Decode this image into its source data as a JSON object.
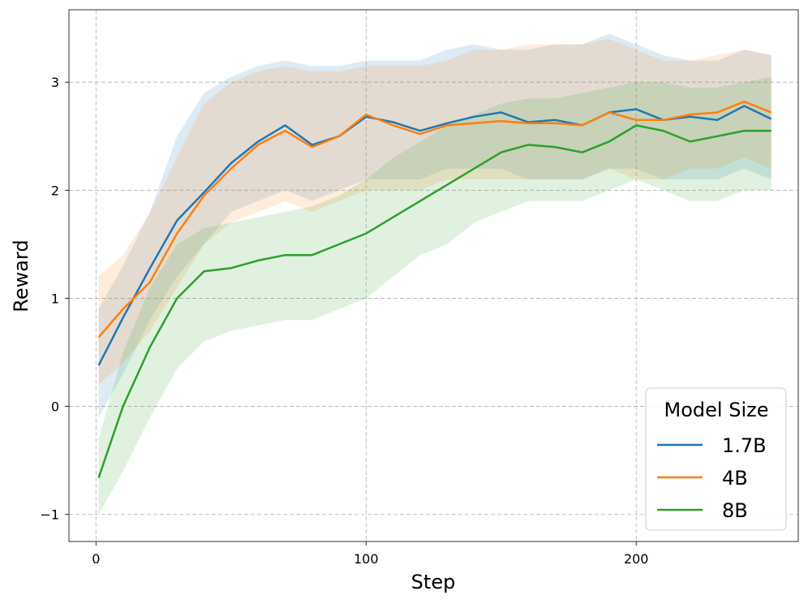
{
  "chart_data": {
    "type": "line",
    "xlabel": "Step",
    "ylabel": "Reward",
    "xlim": [
      -10,
      260
    ],
    "ylim": [
      -1.25,
      3.67
    ],
    "xticks": [
      0,
      100,
      200
    ],
    "yticks": [
      -1,
      0,
      1,
      2,
      3
    ],
    "grid": true,
    "legend": {
      "title": "Model Size",
      "position": "bottom-right"
    },
    "series": [
      {
        "name": "1.7B",
        "color": "#1f77b4",
        "x": [
          1,
          10,
          20,
          30,
          40,
          50,
          60,
          70,
          80,
          90,
          100,
          110,
          120,
          130,
          140,
          150,
          160,
          170,
          180,
          190,
          200,
          210,
          220,
          230,
          240,
          250
        ],
        "y": [
          0.38,
          0.82,
          1.28,
          1.72,
          1.98,
          2.25,
          2.45,
          2.6,
          2.42,
          2.5,
          2.68,
          2.63,
          2.55,
          2.62,
          2.68,
          2.72,
          2.63,
          2.65,
          2.6,
          2.72,
          2.75,
          2.65,
          2.68,
          2.65,
          2.78,
          2.66
        ],
        "lower": [
          -0.1,
          0.3,
          0.8,
          1.2,
          1.5,
          1.8,
          1.9,
          2.0,
          1.9,
          2.0,
          2.1,
          2.1,
          2.1,
          2.2,
          2.2,
          2.2,
          2.1,
          2.1,
          2.1,
          2.2,
          2.2,
          2.1,
          2.1,
          2.1,
          2.2,
          2.1
        ],
        "upper": [
          0.9,
          1.3,
          1.8,
          2.5,
          2.9,
          3.05,
          3.15,
          3.2,
          3.15,
          3.15,
          3.2,
          3.2,
          3.2,
          3.3,
          3.35,
          3.3,
          3.3,
          3.35,
          3.35,
          3.45,
          3.35,
          3.25,
          3.2,
          3.2,
          3.3,
          3.25
        ]
      },
      {
        "name": "4B",
        "color": "#ff7f0e",
        "x": [
          1,
          10,
          20,
          30,
          40,
          50,
          60,
          70,
          80,
          90,
          100,
          110,
          120,
          130,
          140,
          150,
          160,
          170,
          180,
          190,
          200,
          210,
          220,
          230,
          240,
          250
        ],
        "y": [
          0.64,
          0.9,
          1.15,
          1.6,
          1.95,
          2.2,
          2.42,
          2.55,
          2.4,
          2.5,
          2.7,
          2.6,
          2.52,
          2.6,
          2.62,
          2.64,
          2.62,
          2.62,
          2.6,
          2.72,
          2.65,
          2.65,
          2.7,
          2.72,
          2.82,
          2.72
        ],
        "lower": [
          0.2,
          0.4,
          0.7,
          1.1,
          1.5,
          1.7,
          1.8,
          1.9,
          1.8,
          1.9,
          2.0,
          2.0,
          2.0,
          2.1,
          2.1,
          2.1,
          2.1,
          2.1,
          2.1,
          2.2,
          2.1,
          2.1,
          2.2,
          2.2,
          2.3,
          2.2
        ],
        "upper": [
          1.2,
          1.4,
          1.8,
          2.3,
          2.8,
          3.0,
          3.1,
          3.15,
          3.1,
          3.1,
          3.15,
          3.15,
          3.15,
          3.2,
          3.3,
          3.3,
          3.35,
          3.35,
          3.35,
          3.4,
          3.3,
          3.2,
          3.2,
          3.25,
          3.3,
          3.25
        ]
      },
      {
        "name": "8B",
        "color": "#2ca02c",
        "x": [
          1,
          10,
          20,
          30,
          40,
          50,
          60,
          70,
          80,
          90,
          100,
          110,
          120,
          130,
          140,
          150,
          160,
          170,
          180,
          190,
          200,
          210,
          220,
          230,
          240,
          250
        ],
        "y": [
          -0.66,
          0.0,
          0.55,
          1.0,
          1.25,
          1.28,
          1.35,
          1.4,
          1.4,
          1.5,
          1.6,
          1.75,
          1.9,
          2.05,
          2.2,
          2.35,
          2.42,
          2.4,
          2.35,
          2.45,
          2.6,
          2.55,
          2.45,
          2.5,
          2.55,
          2.55
        ],
        "lower": [
          -1.0,
          -0.6,
          -0.1,
          0.35,
          0.6,
          0.7,
          0.75,
          0.8,
          0.8,
          0.9,
          1.0,
          1.2,
          1.4,
          1.5,
          1.7,
          1.8,
          1.9,
          1.9,
          1.9,
          2.0,
          2.1,
          2.0,
          1.9,
          1.9,
          2.0,
          2.0
        ],
        "upper": [
          -0.3,
          0.5,
          1.1,
          1.5,
          1.65,
          1.7,
          1.75,
          1.8,
          1.85,
          1.95,
          2.1,
          2.3,
          2.45,
          2.6,
          2.7,
          2.8,
          2.85,
          2.85,
          2.9,
          2.95,
          3.0,
          3.0,
          2.95,
          2.95,
          3.0,
          3.05
        ]
      }
    ]
  }
}
